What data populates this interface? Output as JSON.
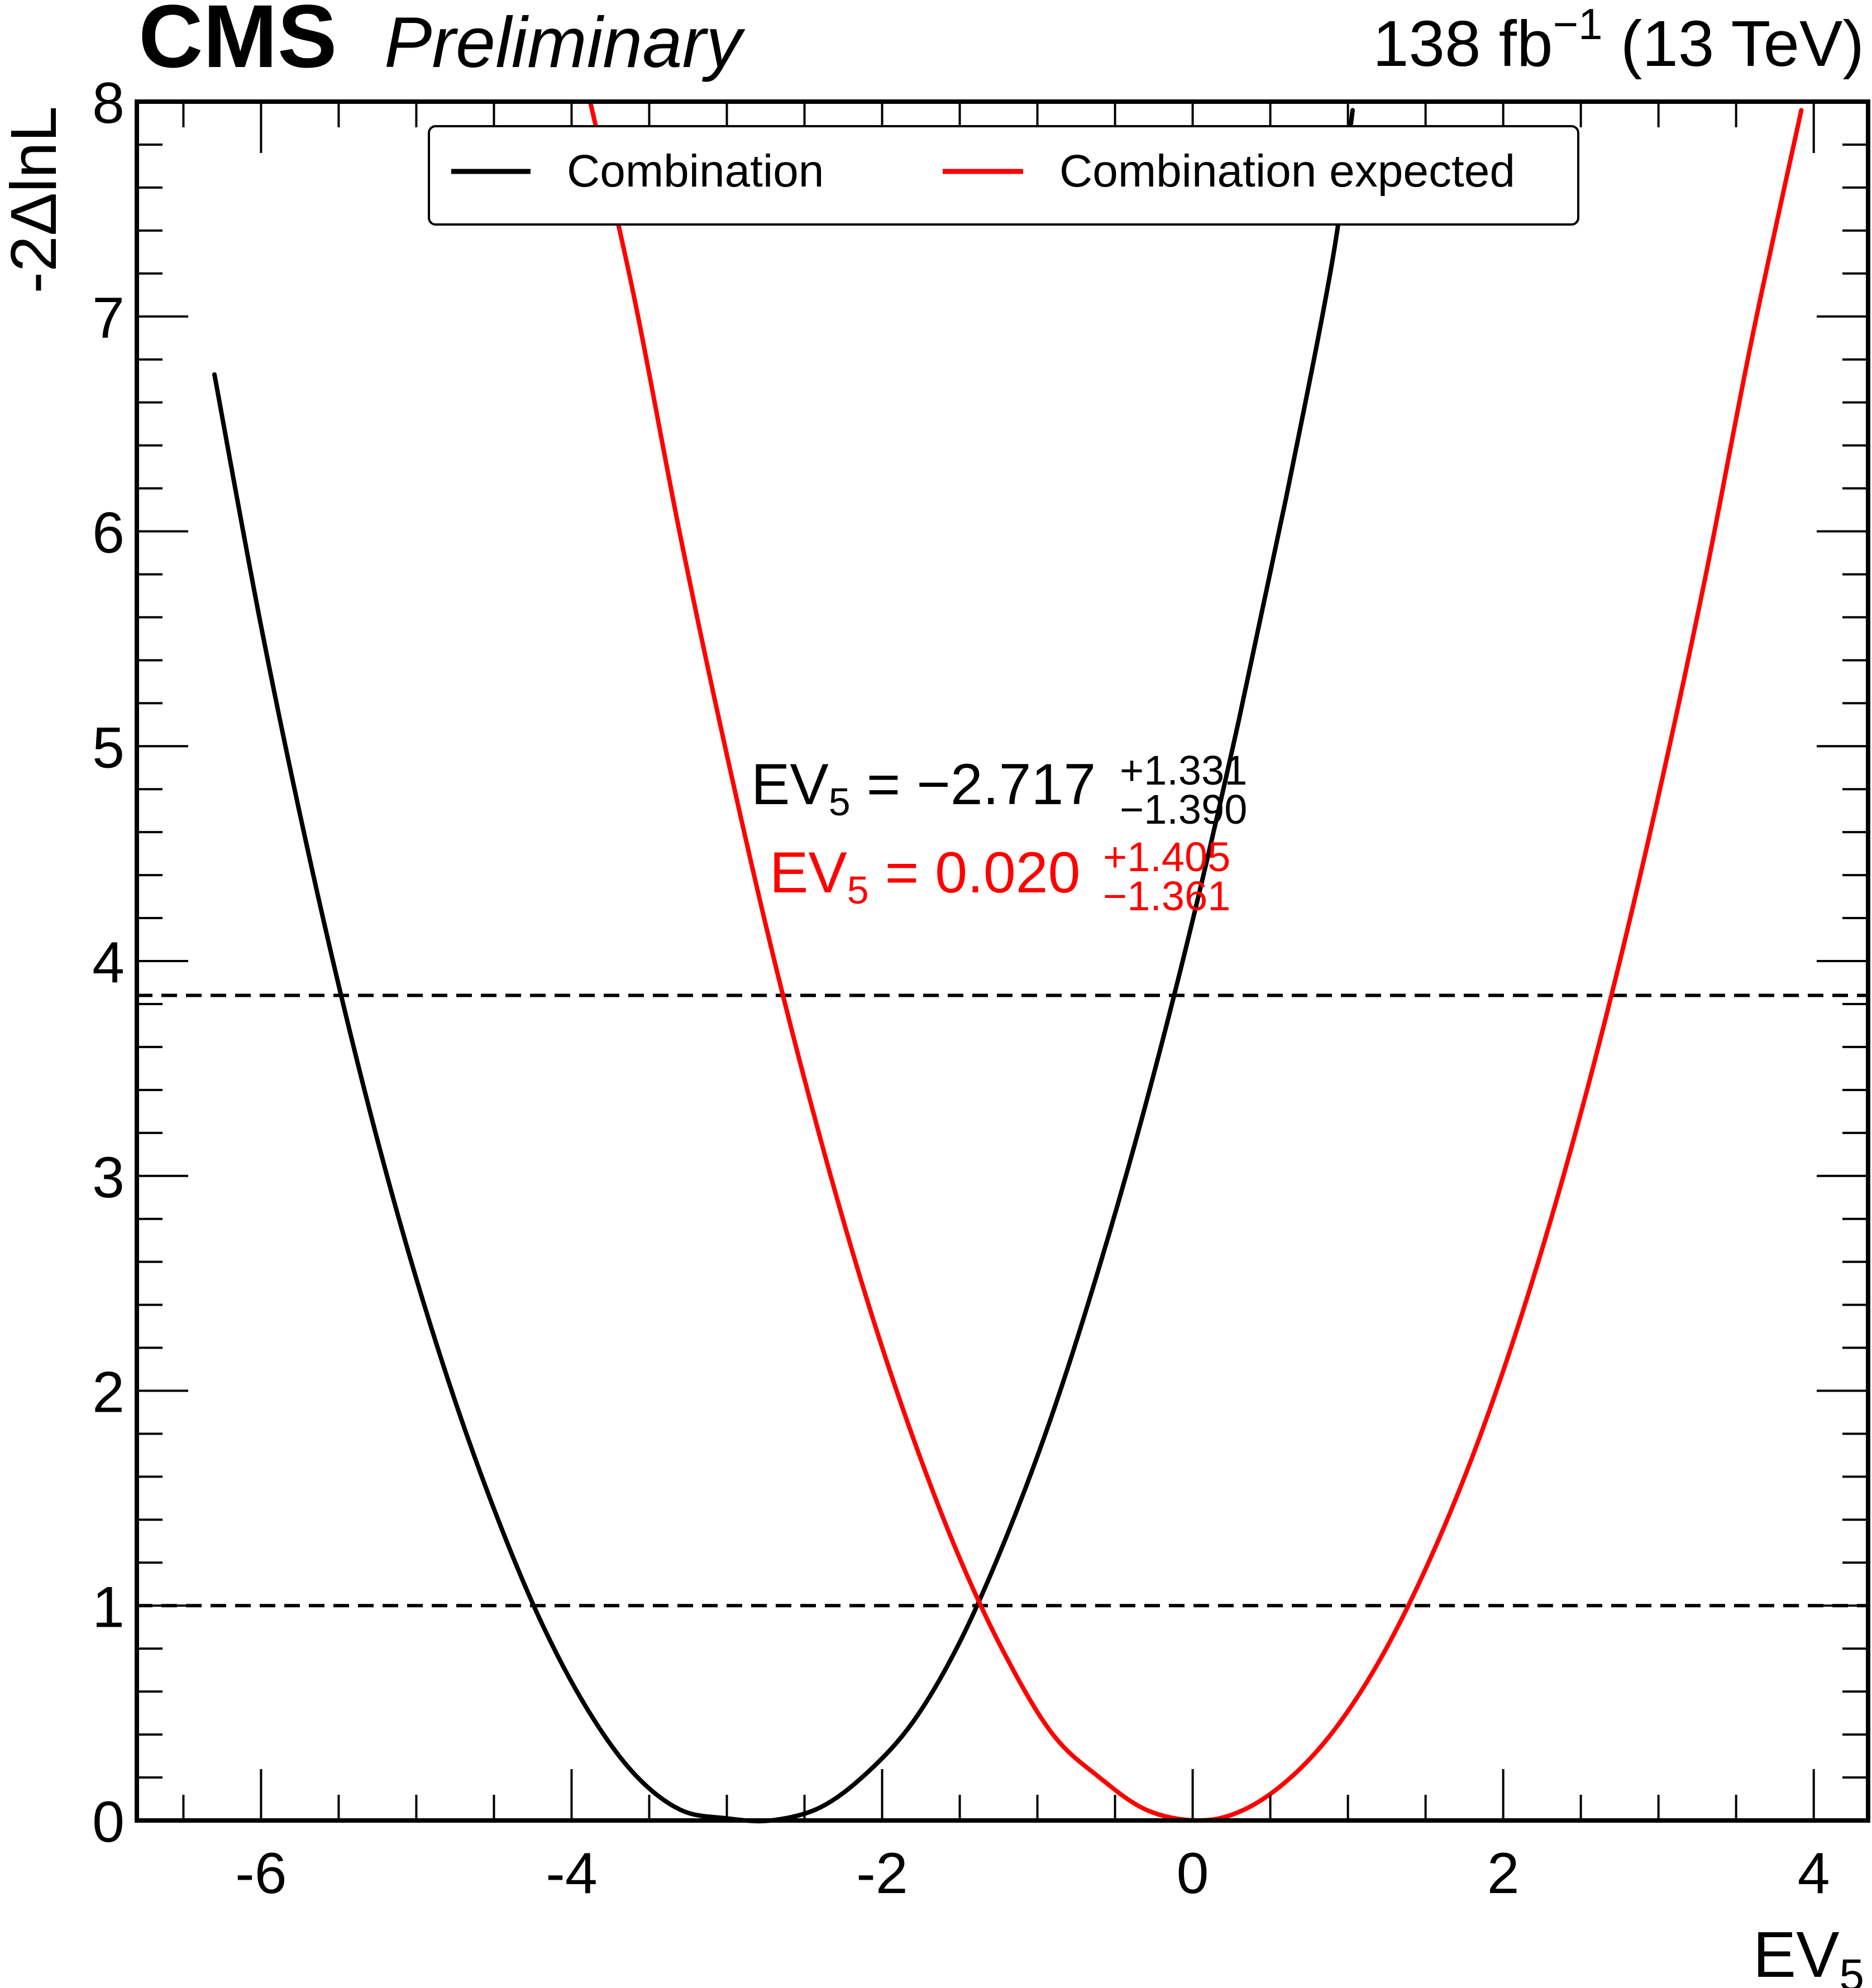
{
  "header": {
    "experiment": "CMS",
    "status": "Preliminary",
    "lumi_value": "138 fb",
    "lumi_exponent": "−1",
    "energy": "(13 TeV)"
  },
  "legend": {
    "placement": "top-center",
    "entries": [
      {
        "label": "Combination",
        "color": "#000000"
      },
      {
        "label": "Combination expected",
        "color": "#ff0000"
      }
    ]
  },
  "annotations": {
    "observed": {
      "base": "EV",
      "sub": "5",
      "eq": " = −2.717",
      "up": "+1.331",
      "down": "−1.390",
      "color": "#000000"
    },
    "expected": {
      "base": "EV",
      "sub": "5",
      "eq": " = 0.020",
      "up": "+1.405",
      "down": "−1.361",
      "color": "#ff0000"
    }
  },
  "chart_data": {
    "type": "line",
    "xlabel": {
      "base": "EV",
      "sub": "5"
    },
    "ylabel": "-2ΔlnL",
    "xlim": [
      -6.8,
      4.35
    ],
    "ylim": [
      0,
      8
    ],
    "x_ticks": [
      -6,
      -4,
      -2,
      0,
      2,
      4
    ],
    "x_tick_labels": [
      "-6",
      "-4",
      "-2",
      "0",
      "2",
      "4"
    ],
    "y_ticks": [
      0,
      1,
      2,
      3,
      4,
      5,
      6,
      7,
      8
    ],
    "y_tick_labels": [
      "0",
      "1",
      "2",
      "3",
      "4",
      "5",
      "6",
      "7",
      "8"
    ],
    "grid": false,
    "reference_lines": [
      1.0,
      3.84
    ],
    "series": [
      {
        "name": "Combination",
        "color": "#000000",
        "x": [
          -6.3,
          -6.0,
          -5.7,
          -5.4,
          -5.1,
          -4.8,
          -4.5,
          -4.2,
          -3.9,
          -3.6,
          -3.3,
          -3.0,
          -2.717,
          -2.4,
          -2.1,
          -1.8,
          -1.5,
          -1.2,
          -0.9,
          -0.6,
          -0.3,
          0.0,
          0.3,
          0.6,
          0.9,
          1.03
        ],
        "y": [
          6.73,
          5.56,
          4.52,
          3.59,
          2.77,
          2.06,
          1.45,
          0.93,
          0.52,
          0.22,
          0.05,
          0.01,
          0.0,
          0.06,
          0.22,
          0.46,
          0.83,
          1.32,
          1.9,
          2.58,
          3.34,
          4.19,
          5.13,
          6.15,
          7.26,
          7.96
        ]
      },
      {
        "name": "Combination expected",
        "color": "#ff0000",
        "x": [
          -3.88,
          -3.6,
          -3.3,
          -3.0,
          -2.7,
          -2.4,
          -2.1,
          -1.8,
          -1.5,
          -1.2,
          -0.9,
          -0.6,
          -0.3,
          0.02,
          0.3,
          0.6,
          0.9,
          1.2,
          1.5,
          1.8,
          2.1,
          2.4,
          2.7,
          3.0,
          3.3,
          3.6,
          3.92
        ],
        "y": [
          8.0,
          7.1,
          5.98,
          4.96,
          4.02,
          3.18,
          2.43,
          1.78,
          1.22,
          0.76,
          0.4,
          0.2,
          0.05,
          0.0,
          0.04,
          0.18,
          0.41,
          0.74,
          1.17,
          1.69,
          2.31,
          3.03,
          3.85,
          4.77,
          5.78,
          6.89,
          7.96
        ]
      }
    ]
  }
}
